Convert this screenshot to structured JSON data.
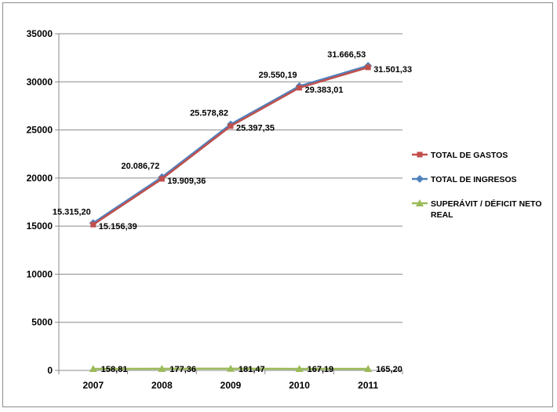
{
  "chart_data": {
    "type": "line",
    "title": "",
    "xlabel": "",
    "ylabel": "",
    "categories": [
      "2007",
      "2008",
      "2009",
      "2010",
      "2011"
    ],
    "ylim": [
      0,
      35000
    ],
    "yticks": [
      0,
      5000,
      10000,
      15000,
      20000,
      25000,
      30000,
      35000
    ],
    "grid": true,
    "legend_position": "right",
    "series": [
      {
        "name": "TOTAL DE GASTOS",
        "color": "#c0504d",
        "marker": "square",
        "values": [
          15156.39,
          19909.36,
          25397.35,
          29383.01,
          31501.33
        ],
        "labels": [
          "15.156,39",
          "19.909,36",
          "25.397,35",
          "29.383,01",
          "31.501,33"
        ]
      },
      {
        "name": "TOTAL DE INGRESOS",
        "color": "#4f81bd",
        "marker": "diamond",
        "values": [
          15315.2,
          20086.72,
          25578.82,
          29550.19,
          31666.53
        ],
        "labels": [
          "15.315,20",
          "20.086,72",
          "25.578,82",
          "29.550,19",
          "31.666,53"
        ]
      },
      {
        "name": "SUPERÁVIT / DÉFICIT NETO REAL",
        "name_lines": [
          "SUPERÁVIT / DÉFICIT NETO",
          "REAL"
        ],
        "color": "#9bbb59",
        "marker": "triangle",
        "values": [
          158.81,
          177.36,
          181.47,
          167.19,
          165.2
        ],
        "labels": [
          "158,81",
          "177,36",
          "181,47",
          "167,19",
          "165,20"
        ]
      }
    ]
  }
}
